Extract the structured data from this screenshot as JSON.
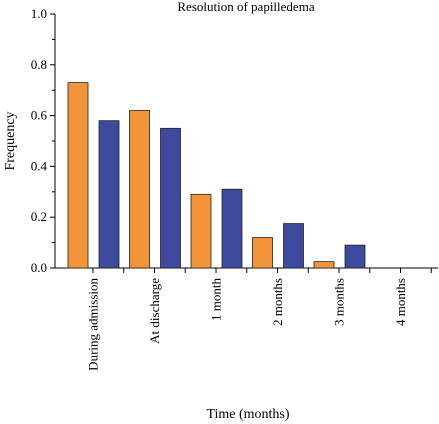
{
  "colors": {
    "orange": "#F4943A",
    "blue": "#3E4A9C",
    "axis": "#000000"
  },
  "chart_data": {
    "type": "bar",
    "title": "Resolution of papilledema",
    "xlabel": "Time (months)",
    "ylabel": "Frequency",
    "ylim": [
      0,
      1.0
    ],
    "yticks": [
      "0.0",
      "0.2",
      "0.4",
      "0.6",
      "0.8",
      "1.0"
    ],
    "categories": [
      "During admission",
      "At discharge",
      "1 month",
      "2 months",
      "3 months",
      "4 months"
    ],
    "series": [
      {
        "color": "#F4943A",
        "values": [
          0.73,
          0.62,
          0.29,
          0.12,
          0.025,
          0
        ]
      },
      {
        "color": "#3E4A9C",
        "values": [
          0.58,
          0.55,
          0.31,
          0.175,
          0.09,
          0
        ]
      }
    ],
    "grid": false,
    "legend": "none"
  }
}
